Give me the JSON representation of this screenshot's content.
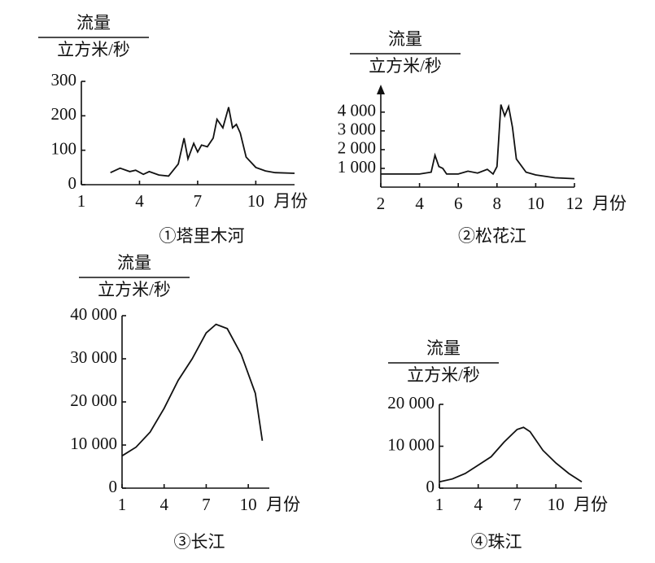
{
  "chart_data": [
    {
      "type": "line",
      "title": "①塔里木河",
      "ylabel": {
        "numerator": "流量",
        "denominator": "立方米/秒"
      },
      "xlabel": "月份",
      "xlim": [
        1,
        12
      ],
      "xticks": [
        1,
        4,
        7,
        10
      ],
      "ylim": [
        0,
        300
      ],
      "yticks": [
        0,
        100,
        200,
        300
      ],
      "color": "#111111",
      "x": [
        2.5,
        3,
        3.5,
        3.8,
        4.2,
        4.5,
        5,
        5.5,
        6,
        6.3,
        6.5,
        6.8,
        7,
        7.2,
        7.5,
        7.8,
        8,
        8.3,
        8.6,
        8.8,
        9,
        9.2,
        9.5,
        10,
        10.5,
        11,
        12
      ],
      "values": [
        35,
        48,
        38,
        42,
        30,
        38,
        28,
        25,
        60,
        135,
        75,
        120,
        95,
        115,
        110,
        135,
        190,
        165,
        225,
        165,
        175,
        150,
        80,
        50,
        40,
        35,
        33
      ]
    },
    {
      "type": "line",
      "title": "②松花江",
      "ylabel": {
        "numerator": "流量",
        "denominator": "立方米/秒"
      },
      "xlabel": "月份",
      "xlim": [
        2,
        12
      ],
      "xticks": [
        2,
        4,
        6,
        8,
        10,
        12
      ],
      "ylim": [
        0,
        4600
      ],
      "yticks": [
        {
          "value": 1000,
          "label": "1 000"
        },
        {
          "value": 2000,
          "label": "2 000"
        },
        {
          "value": 3000,
          "label": "3 000"
        },
        {
          "value": 4000,
          "label": "4 000"
        }
      ],
      "axis_arrow": true,
      "color": "#111111",
      "x": [
        2,
        4,
        4.6,
        4.8,
        5,
        5.2,
        5.4,
        6,
        6.5,
        7,
        7.5,
        7.8,
        8,
        8.2,
        8.4,
        8.6,
        8.8,
        9,
        9.5,
        10,
        11,
        12
      ],
      "values": [
        700,
        700,
        800,
        1700,
        1100,
        1000,
        700,
        700,
        850,
        750,
        950,
        700,
        1100,
        4400,
        3800,
        4300,
        3200,
        1500,
        800,
        650,
        500,
        450
      ]
    },
    {
      "type": "line",
      "title": "③长江",
      "ylabel": {
        "numerator": "流量",
        "denominator": "立方米/秒"
      },
      "xlabel": "月份",
      "xlim": [
        1,
        11.5
      ],
      "xticks": [
        1,
        4,
        7,
        10
      ],
      "ylim": [
        0,
        40000
      ],
      "yticks": [
        0,
        {
          "value": 10000,
          "label": "10 000"
        },
        {
          "value": 20000,
          "label": "20 000"
        },
        {
          "value": 30000,
          "label": "30 000"
        },
        {
          "value": 40000,
          "label": "40 000"
        }
      ],
      "color": "#111111",
      "x": [
        1,
        2,
        3,
        4,
        5,
        6,
        7,
        7.7,
        8.5,
        9.5,
        10.5,
        11
      ],
      "values": [
        7500,
        9500,
        13000,
        18500,
        25000,
        30000,
        36000,
        38000,
        37000,
        31000,
        22000,
        11000
      ]
    },
    {
      "type": "line",
      "title": "④珠江",
      "ylabel": {
        "numerator": "流量",
        "denominator": "立方米/秒"
      },
      "xlabel": "月份",
      "xlim": [
        1,
        12
      ],
      "xticks": [
        1,
        4,
        7,
        10
      ],
      "ylim": [
        0,
        20000
      ],
      "yticks": [
        0,
        {
          "value": 10000,
          "label": "10 000"
        },
        {
          "value": 20000,
          "label": "20 000"
        }
      ],
      "color": "#111111",
      "x": [
        1,
        2,
        3,
        4,
        5,
        6,
        7,
        7.5,
        8,
        9,
        10,
        11,
        12
      ],
      "values": [
        1500,
        2200,
        3500,
        5500,
        7500,
        11000,
        14000,
        14500,
        13500,
        9000,
        6000,
        3500,
        1500
      ]
    }
  ]
}
